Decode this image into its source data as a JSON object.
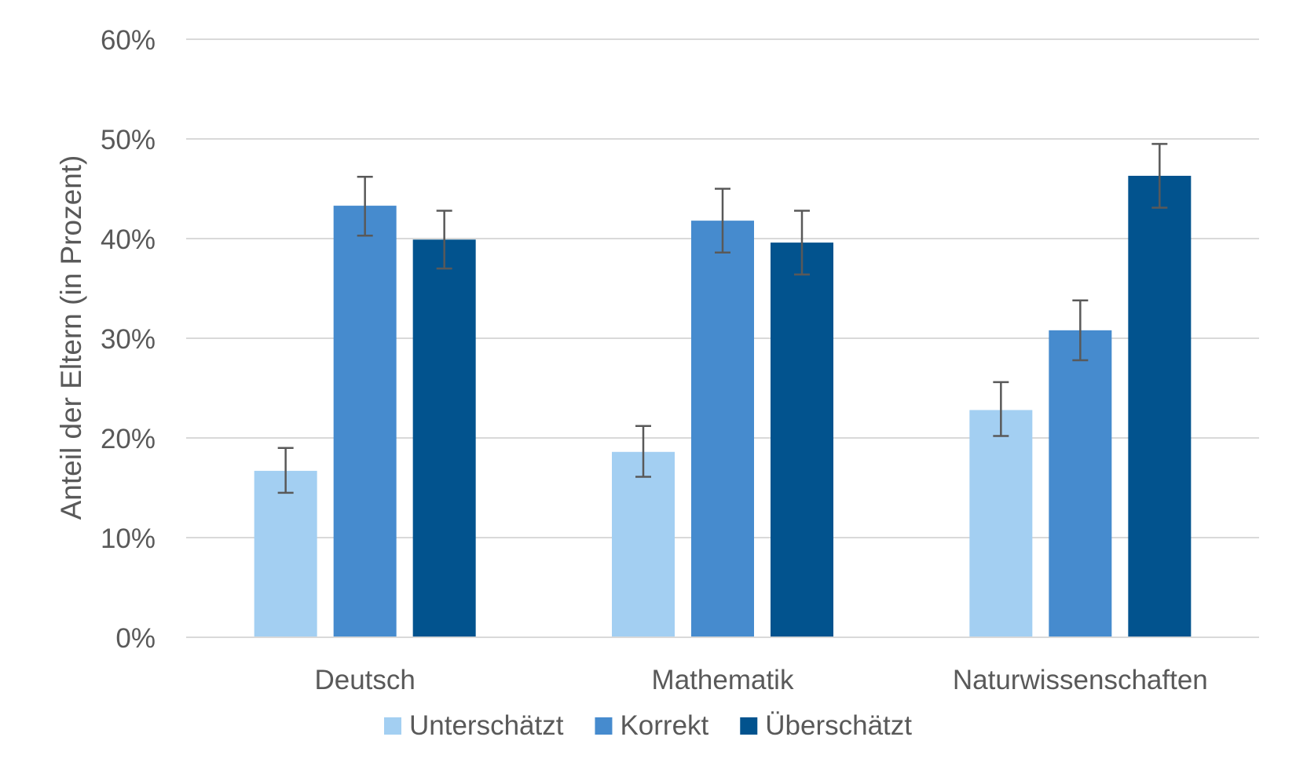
{
  "chart_data": {
    "type": "bar",
    "ylabel": "Anteil der Eltern (in Prozent)",
    "xlabel": "",
    "ylim": [
      0,
      60
    ],
    "yticks": [
      0,
      10,
      20,
      30,
      40,
      50,
      60
    ],
    "ytick_labels": [
      "0%",
      "10%",
      "20%",
      "30%",
      "40%",
      "50%",
      "60%"
    ],
    "grid": true,
    "legend_position": "bottom",
    "categories": [
      "Deutsch",
      "Mathematik",
      "Naturwissenschaften"
    ],
    "series": [
      {
        "name": "Unterschätzt",
        "color": "#A3CFF2",
        "values": [
          16.7,
          18.6,
          22.8
        ],
        "error_low": [
          14.5,
          16.1,
          20.2
        ],
        "error_high": [
          19.0,
          21.2,
          25.6
        ]
      },
      {
        "name": "Korrekt",
        "color": "#468BCE",
        "values": [
          43.3,
          41.8,
          30.8
        ],
        "error_low": [
          40.3,
          38.6,
          27.8
        ],
        "error_high": [
          46.2,
          45.0,
          33.8
        ]
      },
      {
        "name": "Überschätzt",
        "color": "#02538E",
        "values": [
          39.9,
          39.6,
          46.3
        ],
        "error_low": [
          37.0,
          36.4,
          43.1
        ],
        "error_high": [
          42.8,
          42.8,
          49.5
        ]
      }
    ]
  }
}
